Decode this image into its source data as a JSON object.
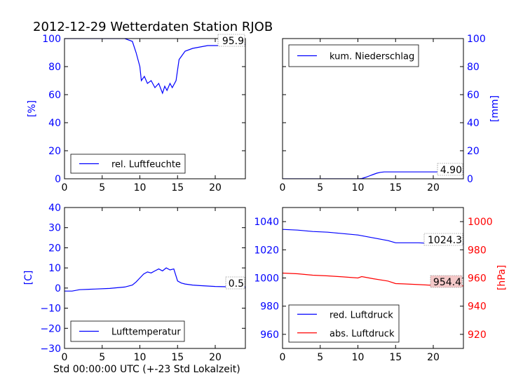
{
  "figure": {
    "title": "2012-12-29 Wetterdaten Station RJOB",
    "xlabel": "Std 00:00:00 UTC (+-23 Std Lokalzeit)"
  },
  "colors": {
    "blue": "#0000ff",
    "red": "#ff0000",
    "valbox_red": "#f4c8c8"
  },
  "chart_data": [
    {
      "id": "humidity",
      "type": "line",
      "ylabel": "[%]",
      "xlim": [
        0,
        24
      ],
      "ylim": [
        0,
        100
      ],
      "xticks": [
        0,
        5,
        10,
        15,
        20
      ],
      "yticks": [
        0,
        20,
        40,
        60,
        80,
        100
      ],
      "legend": {
        "placement": "lower-left",
        "entries": [
          "rel. Luftfeuchte"
        ]
      },
      "value_label": "95.9",
      "series": [
        {
          "name": "rel. Luftfeuchte",
          "color": "#0000ff",
          "x": [
            0,
            2,
            4,
            6,
            8,
            9,
            9.5,
            10,
            10.2,
            10.6,
            11,
            11.5,
            12,
            12.5,
            13,
            13.3,
            13.6,
            14,
            14.3,
            14.8,
            15.2,
            16,
            17,
            18,
            19,
            20,
            21,
            22,
            23,
            24
          ],
          "y": [
            100,
            100,
            100,
            100,
            100,
            98,
            90,
            80,
            70,
            73,
            68,
            70,
            65,
            68,
            61,
            66,
            63,
            68,
            65,
            70,
            85,
            91,
            93,
            94,
            95,
            95,
            95,
            95.5,
            95.8,
            95.9
          ]
        }
      ]
    },
    {
      "id": "precipitation",
      "type": "line",
      "ylabel": "[mm]",
      "xlim": [
        0,
        24
      ],
      "ylim": [
        0,
        100
      ],
      "xticks": [
        0,
        5,
        10,
        15,
        20
      ],
      "yticks": [
        0,
        20,
        40,
        60,
        80,
        100
      ],
      "legend": {
        "placement": "upper-left",
        "entries": [
          "kum. Niederschlag"
        ]
      },
      "value_label": "4.90",
      "series": [
        {
          "name": "kum. Niederschlag",
          "color": "#0000ff",
          "x": [
            0,
            10,
            10.5,
            11,
            11.5,
            12,
            12.5,
            13,
            13.5,
            24
          ],
          "y": [
            0,
            0,
            0.2,
            1.0,
            2.0,
            3.0,
            4.0,
            4.6,
            4.9,
            4.9
          ]
        }
      ]
    },
    {
      "id": "temperature",
      "type": "line",
      "ylabel": "[C]",
      "xlim": [
        0,
        24
      ],
      "ylim": [
        -30,
        40
      ],
      "xticks": [
        0,
        5,
        10,
        15,
        20
      ],
      "yticks": [
        -30,
        -20,
        -10,
        0,
        10,
        20,
        30,
        40
      ],
      "legend": {
        "placement": "lower-left",
        "entries": [
          "Lufttemperatur"
        ]
      },
      "value_label": "0.5",
      "series": [
        {
          "name": "Lufttemperatur",
          "color": "#0000ff",
          "x": [
            0,
            1,
            2,
            4,
            6,
            8,
            9,
            9.5,
            10,
            10.5,
            11,
            11.5,
            12,
            12.5,
            13,
            13.5,
            14,
            14.5,
            15,
            15.5,
            16,
            17,
            18,
            19,
            20,
            22,
            24
          ],
          "y": [
            -1.5,
            -1.5,
            -0.8,
            -0.5,
            -0.2,
            0.5,
            1.5,
            3,
            5,
            7,
            8,
            7.5,
            8.5,
            9.5,
            8.5,
            10,
            9,
            9.5,
            3.5,
            2.5,
            2,
            1.5,
            1.2,
            1,
            0.8,
            0.6,
            0.5
          ]
        }
      ]
    },
    {
      "id": "pressure",
      "type": "line",
      "ylabel": "[hPa]",
      "xlim": [
        0,
        24
      ],
      "ylim": [
        950,
        1050
      ],
      "ylim_right": [
        910,
        1010
      ],
      "xticks": [
        0,
        5,
        10,
        15,
        20
      ],
      "yticks": [
        960,
        980,
        1000,
        1020,
        1040
      ],
      "yticks_right": [
        920,
        940,
        960,
        980,
        1000
      ],
      "legend": {
        "placement": "lower-left",
        "entries": [
          "red. Luftdruck",
          "abs. Luftdruck"
        ]
      },
      "value_labels": [
        "1024.3",
        "954.4"
      ],
      "series": [
        {
          "name": "red. Luftdruck",
          "color": "#0000ff",
          "axis": "left",
          "x": [
            0,
            2,
            4,
            6,
            8,
            10,
            12,
            14,
            15,
            16,
            18,
            20,
            22,
            24
          ],
          "y": [
            1034.5,
            1034,
            1033,
            1032.5,
            1031.5,
            1030.5,
            1028.5,
            1026.5,
            1025,
            1025,
            1025,
            1024.5,
            1024,
            1024.3
          ]
        },
        {
          "name": "abs. Luftdruck",
          "color": "#ff0000",
          "axis": "right",
          "x": [
            0,
            2,
            4,
            6,
            8,
            10,
            10.5,
            11,
            12,
            14,
            15,
            16,
            18,
            20,
            22,
            24
          ],
          "y": [
            963.5,
            963,
            962,
            961.5,
            960.8,
            960,
            961,
            960.5,
            959.5,
            957.8,
            956,
            955.8,
            955.3,
            954.8,
            954.5,
            954.4
          ]
        }
      ]
    }
  ]
}
